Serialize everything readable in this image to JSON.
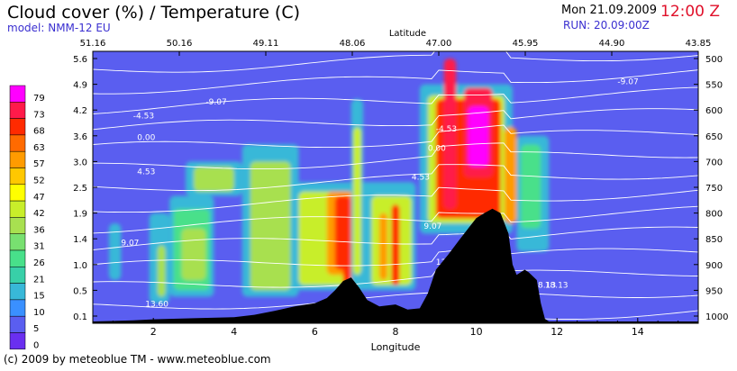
{
  "header": {
    "title": "Cloud cover (%) / Temperature (C)",
    "model": "model: NMM-12 EU",
    "date": "Mon 21.09.2009",
    "time": "12:00 Z",
    "run": "RUN: 20.09:00Z"
  },
  "footer": {
    "copyright": "(c) 2009 by meteoblue TM - www.meteoblue.com"
  },
  "colors": {
    "background": "#5a5ef0",
    "terrain": "#000000",
    "isotherm": "#ffffff",
    "time_accent": "#e0102a",
    "model_text": "#3a2fd0"
  },
  "chart_data": {
    "type": "heatmap",
    "title": "Cloud cover (%) / Temperature (C)",
    "xlabel": "Longitude",
    "x2label": "Latitude",
    "xlim": [
      0.5,
      15.5
    ],
    "x_ticks": [
      2,
      4,
      6,
      8,
      10,
      12,
      14
    ],
    "x2_ticks": [
      "51.16",
      "50.16",
      "49.11",
      "48.06",
      "47.00",
      "45.95",
      "44.90",
      "43.85"
    ],
    "y_left_ticks": [
      "5.6",
      "4.9",
      "4.2",
      "3.6",
      "3.0",
      "2.5",
      "1.9",
      "1.4",
      "1.0",
      "0.5",
      "0.1"
    ],
    "y_right_ticks": [
      "500",
      "550",
      "600",
      "650",
      "700",
      "750",
      "800",
      "850",
      "900",
      "950",
      "1000"
    ],
    "legend": {
      "labels": [
        "79",
        "73",
        "68",
        "63",
        "57",
        "52",
        "47",
        "42",
        "36",
        "31",
        "26",
        "21",
        "15",
        "10",
        "5",
        "0"
      ],
      "colors": [
        "#ff00ff",
        "#ff1a4a",
        "#ff2a00",
        "#ff6a00",
        "#ff9b00",
        "#ffc800",
        "#ffff00",
        "#c8ee2a",
        "#a8e050",
        "#78e070",
        "#48e08a",
        "#38d0a8",
        "#38b8d8",
        "#3a90ff",
        "#5a5ef0",
        "#6a2ff0"
      ]
    },
    "isotherm_labels": [
      "-9.07",
      "-4.53",
      "0.00",
      "4.53",
      "9.07",
      "13.60",
      "18.13"
    ],
    "cloud_cells": [
      {
        "x0": 0.9,
        "x1": 1.2,
        "y0": 0.7,
        "y1": 1.7,
        "v": 15
      },
      {
        "x0": 1.9,
        "x1": 2.4,
        "y0": 0.3,
        "y1": 1.9,
        "v": 15
      },
      {
        "x0": 2.1,
        "x1": 2.3,
        "y0": 0.4,
        "y1": 1.3,
        "v": 36
      },
      {
        "x0": 2.4,
        "x1": 3.5,
        "y0": 0.4,
        "y1": 2.3,
        "v": 15
      },
      {
        "x0": 2.5,
        "x1": 3.4,
        "y0": 0.5,
        "y1": 2.0,
        "v": 26
      },
      {
        "x0": 2.7,
        "x1": 3.3,
        "y0": 0.7,
        "y1": 1.6,
        "v": 36
      },
      {
        "x0": 2.8,
        "x1": 4.2,
        "y0": 2.3,
        "y1": 3.0,
        "v": 15
      },
      {
        "x0": 3.0,
        "x1": 4.0,
        "y0": 2.4,
        "y1": 2.9,
        "v": 36
      },
      {
        "x0": 4.2,
        "x1": 5.6,
        "y0": 0.4,
        "y1": 3.4,
        "v": 15
      },
      {
        "x0": 4.4,
        "x1": 5.4,
        "y0": 0.5,
        "y1": 3.0,
        "v": 36
      },
      {
        "x0": 5.5,
        "x1": 7.4,
        "y0": 0.5,
        "y1": 2.6,
        "v": 15
      },
      {
        "x0": 5.6,
        "x1": 7.2,
        "y0": 0.6,
        "y1": 2.4,
        "v": 42
      },
      {
        "x0": 6.3,
        "x1": 7.2,
        "y0": 0.8,
        "y1": 2.4,
        "v": 57
      },
      {
        "x0": 6.5,
        "x1": 6.9,
        "y0": 0.9,
        "y1": 2.3,
        "v": 68
      },
      {
        "x0": 6.7,
        "x1": 6.9,
        "y0": 0.4,
        "y1": 1.0,
        "v": 68
      },
      {
        "x0": 6.9,
        "x1": 7.2,
        "y0": 0.6,
        "y1": 4.5,
        "v": 15
      },
      {
        "x0": 6.95,
        "x1": 7.15,
        "y0": 0.8,
        "y1": 3.8,
        "v": 42
      },
      {
        "x0": 7.2,
        "x1": 8.5,
        "y0": 0.5,
        "y1": 2.6,
        "v": 15
      },
      {
        "x0": 7.4,
        "x1": 8.4,
        "y0": 0.6,
        "y1": 2.3,
        "v": 42
      },
      {
        "x0": 7.9,
        "x1": 8.1,
        "y0": 0.6,
        "y1": 2.1,
        "v": 68
      },
      {
        "x0": 7.6,
        "x1": 7.8,
        "y0": 0.7,
        "y1": 1.9,
        "v": 57
      },
      {
        "x0": 8.6,
        "x1": 10.9,
        "y0": 1.5,
        "y1": 4.9,
        "v": 15
      },
      {
        "x0": 8.8,
        "x1": 10.7,
        "y0": 1.7,
        "y1": 4.6,
        "v": 42
      },
      {
        "x0": 9.0,
        "x1": 10.6,
        "y0": 1.8,
        "y1": 4.5,
        "v": 68
      },
      {
        "x0": 9.2,
        "x1": 9.5,
        "y0": 2.0,
        "y1": 5.6,
        "v": 73
      },
      {
        "x0": 9.7,
        "x1": 10.4,
        "y0": 2.7,
        "y1": 4.8,
        "v": 73
      },
      {
        "x0": 9.8,
        "x1": 10.3,
        "y0": 2.9,
        "y1": 4.3,
        "v": 79
      },
      {
        "x0": 10.7,
        "x1": 11.0,
        "y0": 1.7,
        "y1": 3.8,
        "v": 57
      },
      {
        "x0": 11.0,
        "x1": 11.8,
        "y0": 1.2,
        "y1": 3.6,
        "v": 15
      },
      {
        "x0": 11.1,
        "x1": 11.6,
        "y0": 1.6,
        "y1": 3.4,
        "v": 26
      }
    ],
    "terrain_profile": [
      [
        0.5,
        0.0
      ],
      [
        1.5,
        0.02
      ],
      [
        2.0,
        0.04
      ],
      [
        3.0,
        0.06
      ],
      [
        4.0,
        0.08
      ],
      [
        4.5,
        0.12
      ],
      [
        5.0,
        0.18
      ],
      [
        5.5,
        0.25
      ],
      [
        6.0,
        0.3
      ],
      [
        6.3,
        0.38
      ],
      [
        6.5,
        0.5
      ],
      [
        6.7,
        0.68
      ],
      [
        6.9,
        0.75
      ],
      [
        7.1,
        0.55
      ],
      [
        7.3,
        0.35
      ],
      [
        7.6,
        0.25
      ],
      [
        8.0,
        0.28
      ],
      [
        8.3,
        0.2
      ],
      [
        8.6,
        0.22
      ],
      [
        8.8,
        0.45
      ],
      [
        9.0,
        0.9
      ],
      [
        9.3,
        1.15
      ],
      [
        9.6,
        1.4
      ],
      [
        9.8,
        1.6
      ],
      [
        10.0,
        1.8
      ],
      [
        10.2,
        1.9
      ],
      [
        10.4,
        2.0
      ],
      [
        10.6,
        1.9
      ],
      [
        10.8,
        1.5
      ],
      [
        10.9,
        1.0
      ],
      [
        11.0,
        0.8
      ],
      [
        11.2,
        0.9
      ],
      [
        11.3,
        0.85
      ],
      [
        11.5,
        0.7
      ],
      [
        11.6,
        0.3
      ],
      [
        11.7,
        0.05
      ],
      [
        11.8,
        0.0
      ],
      [
        15.5,
        0.0
      ]
    ]
  }
}
